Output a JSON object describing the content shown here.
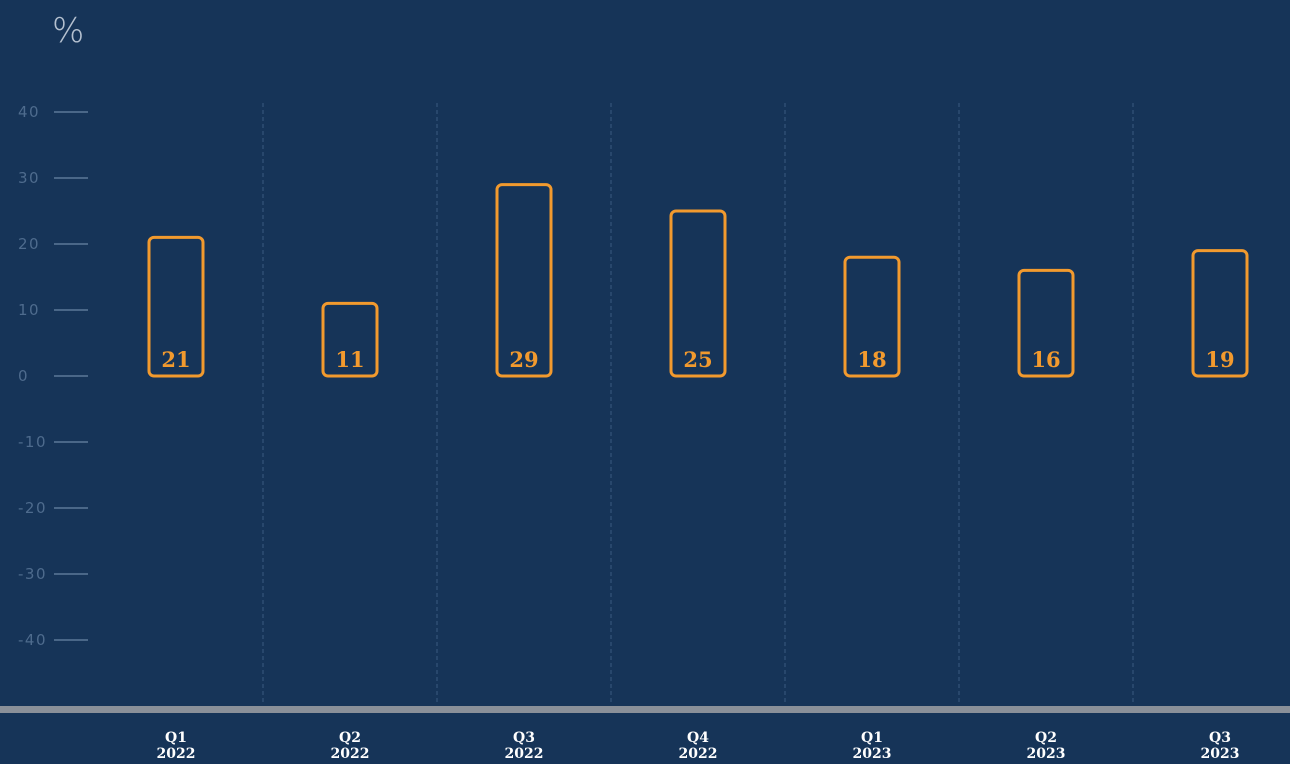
{
  "chart_data": {
    "type": "bar",
    "unit_label": "%",
    "categories": [
      {
        "quarter": "Q1",
        "year": "2022"
      },
      {
        "quarter": "Q2",
        "year": "2022"
      },
      {
        "quarter": "Q3",
        "year": "2022"
      },
      {
        "quarter": "Q4",
        "year": "2022"
      },
      {
        "quarter": "Q1",
        "year": "2023"
      },
      {
        "quarter": "Q2",
        "year": "2023"
      },
      {
        "quarter": "Q3",
        "year": "2023"
      }
    ],
    "values": [
      21,
      11,
      29,
      25,
      18,
      16,
      19
    ],
    "ylim": [
      -50,
      40
    ],
    "yticks": [
      40,
      30,
      20,
      10,
      0,
      -10,
      -20,
      -30,
      -40
    ],
    "grid": "vertical-dashed",
    "bar_style": "outlined-rounded",
    "colors": {
      "background": "#163458",
      "bar_outline": "#f29a2e",
      "value_text": "#f29a2e",
      "axis_text": "#4e6b8d",
      "tick_line": "#5b7898",
      "grid_line": "#3a5a80",
      "baseline": "#8a9099",
      "category_text": "#ffffff",
      "unit_text": "#b4c0cf"
    }
  }
}
